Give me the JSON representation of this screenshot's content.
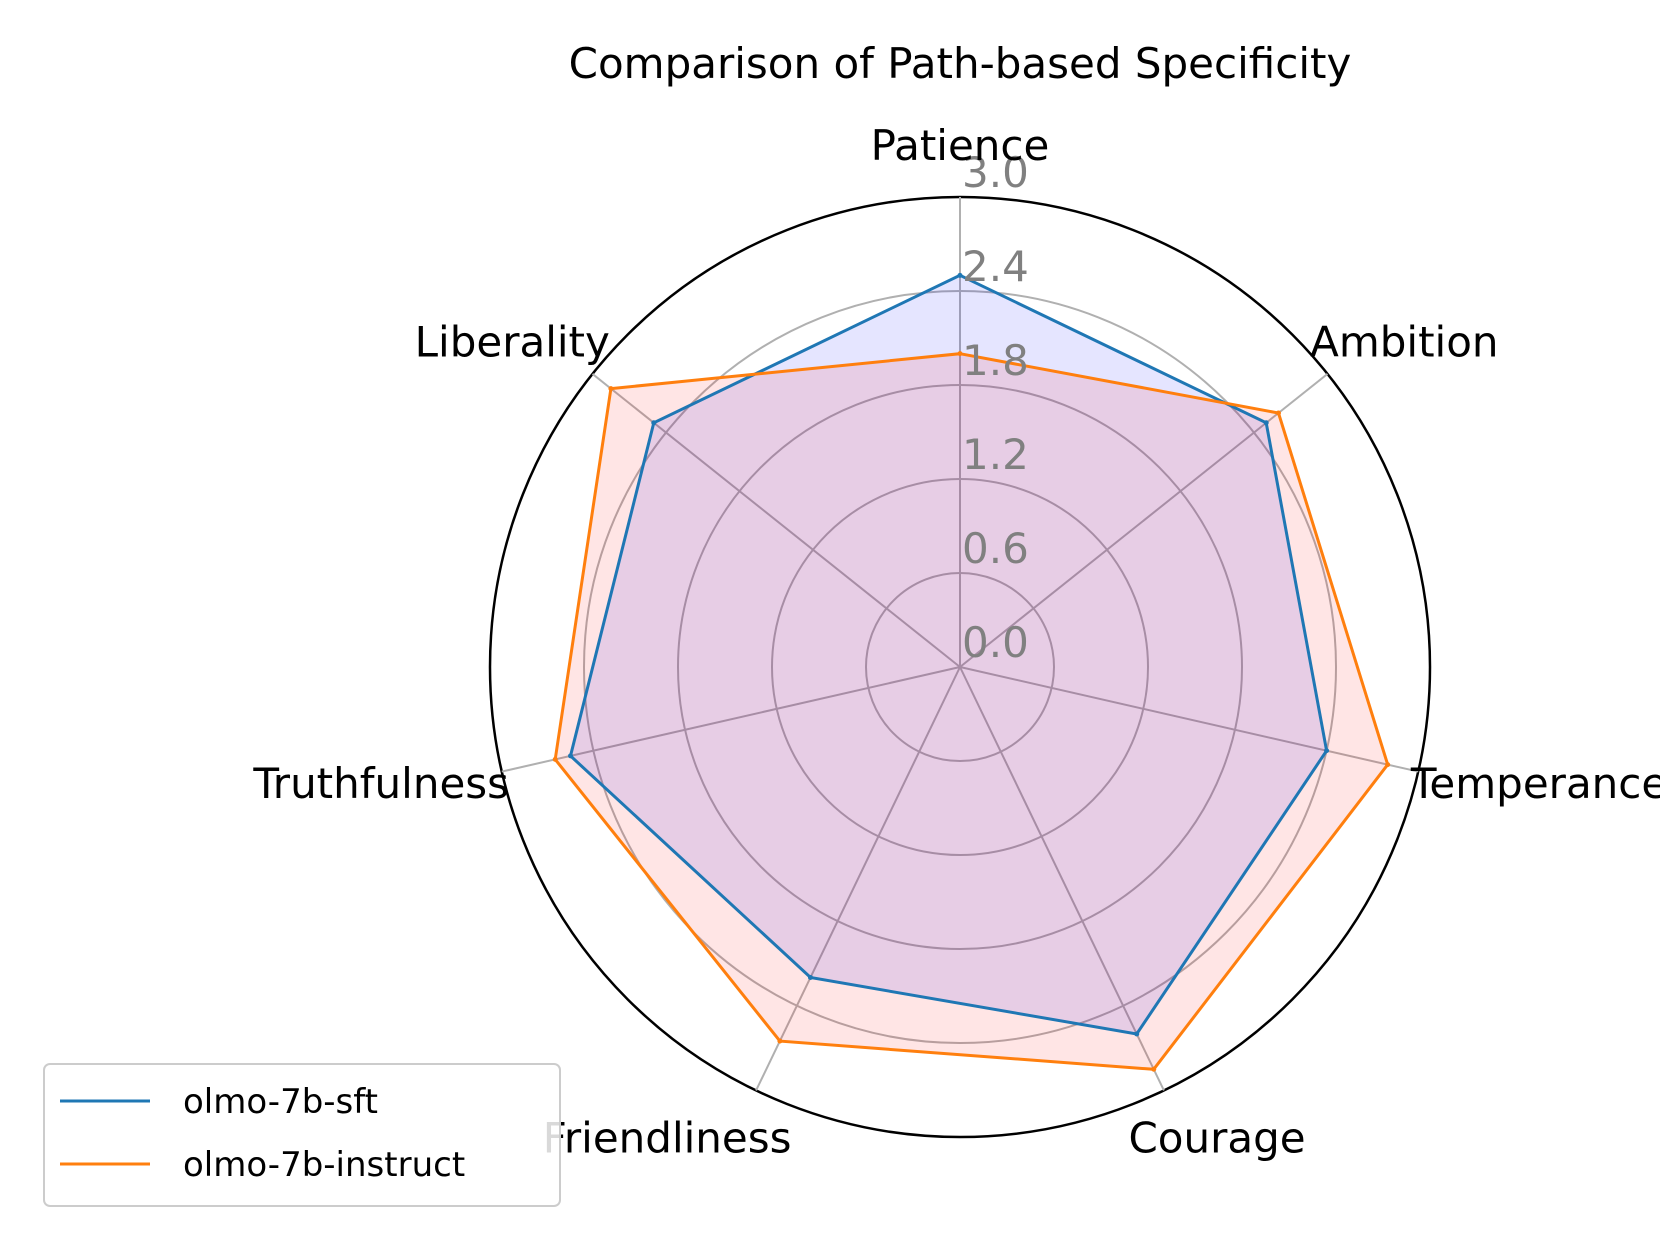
{
  "chart_data": {
    "type": "radar",
    "title": "Comparison of Path-based Specificity",
    "categories": [
      "Patience",
      "Ambition",
      "Temperance",
      "Courage",
      "Friendliness",
      "Truthfulness",
      "Liberality"
    ],
    "rlim": [
      0,
      3.0
    ],
    "rticks": [
      "0.0",
      "0.6",
      "1.2",
      "1.8",
      "2.4",
      "3.0"
    ],
    "rtick_values": [
      0,
      0.6,
      1.2,
      1.8,
      2.4,
      3.0
    ],
    "grid": true,
    "legend_position": "lower-left",
    "series": [
      {
        "name": "olmo-7b-sft",
        "color": "#1f77b4",
        "fill": "#0000ff",
        "values": [
          2.5,
          2.5,
          2.4,
          2.6,
          2.2,
          2.55,
          2.5
        ]
      },
      {
        "name": "olmo-7b-instruct",
        "color": "#ff7f0e",
        "fill": "#ff0000",
        "values": [
          2.0,
          2.6,
          2.8,
          2.85,
          2.65,
          2.65,
          2.85
        ]
      }
    ]
  }
}
